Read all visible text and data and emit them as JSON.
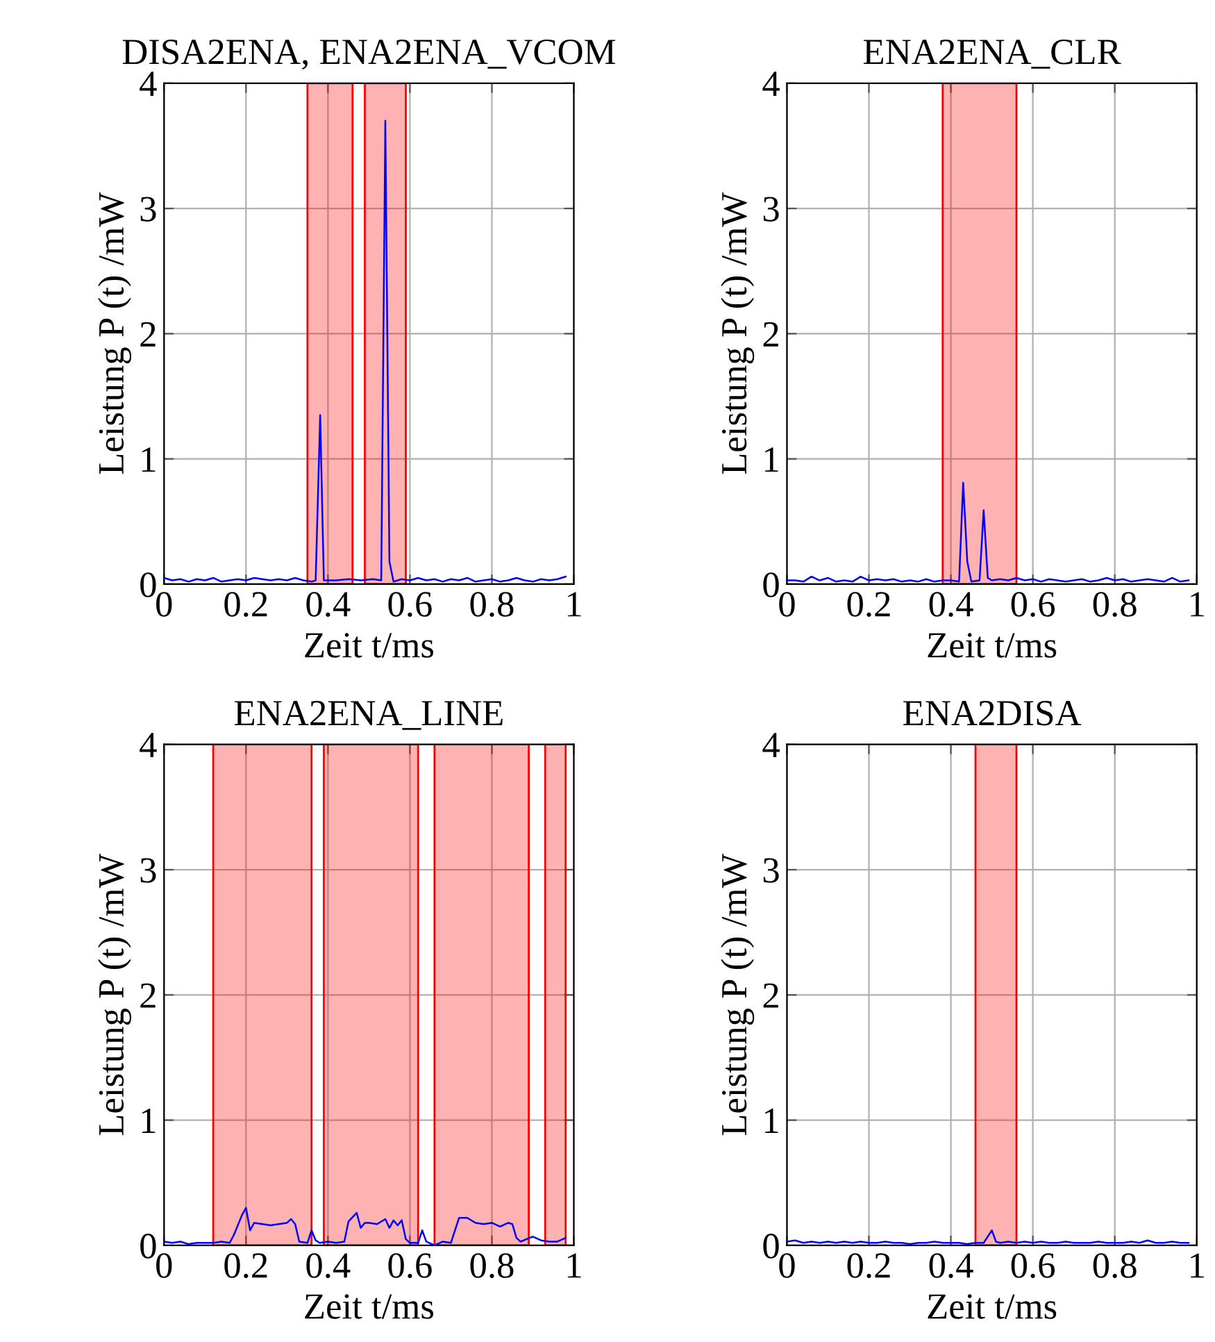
{
  "chart_data": [
    {
      "type": "line",
      "title": "DISA2ENA, ENA2ENA_VCOM",
      "xlabel": "Zeit t/ms",
      "ylabel": "Leistung P (t) /mW",
      "xlim": [
        0,
        1
      ],
      "ylim": [
        0,
        4
      ],
      "xticks": [
        0,
        0.2,
        0.4,
        0.6,
        0.8,
        1
      ],
      "yticks": [
        0,
        1,
        2,
        3,
        4
      ],
      "grid": true,
      "legend": false,
      "bands": [
        {
          "axis": "x",
          "from": 0.35,
          "to": 0.46,
          "color": "#ff0000"
        },
        {
          "axis": "x",
          "from": 0.49,
          "to": 0.59,
          "color": "#ff0000"
        }
      ],
      "series": [
        {
          "color": "#0000ff",
          "x": [
            0,
            0.02,
            0.04,
            0.06,
            0.08,
            0.1,
            0.12,
            0.14,
            0.16,
            0.18,
            0.2,
            0.22,
            0.24,
            0.26,
            0.28,
            0.3,
            0.32,
            0.34,
            0.36,
            0.37,
            0.381,
            0.39,
            0.42,
            0.45,
            0.48,
            0.51,
            0.53,
            0.54,
            0.55,
            0.56,
            0.58,
            0.6,
            0.62,
            0.64,
            0.66,
            0.68,
            0.7,
            0.72,
            0.74,
            0.76,
            0.78,
            0.8,
            0.82,
            0.84,
            0.86,
            0.88,
            0.9,
            0.92,
            0.94,
            0.96,
            0.98
          ],
          "values": [
            0.05,
            0.03,
            0.04,
            0.02,
            0.04,
            0.03,
            0.05,
            0.02,
            0.03,
            0.04,
            0.03,
            0.05,
            0.04,
            0.03,
            0.04,
            0.03,
            0.05,
            0.03,
            0.02,
            0.03,
            1.35,
            0.03,
            0.03,
            0.04,
            0.03,
            0.04,
            0.03,
            3.7,
            0.18,
            0.02,
            0.04,
            0.03,
            0.05,
            0.03,
            0.04,
            0.02,
            0.04,
            0.03,
            0.05,
            0.02,
            0.03,
            0.04,
            0.02,
            0.03,
            0.05,
            0.03,
            0.02,
            0.04,
            0.03,
            0.04,
            0.06
          ]
        }
      ]
    },
    {
      "type": "line",
      "title": "ENA2ENA_CLR",
      "xlabel": "Zeit t/ms",
      "ylabel": "Leistung P (t) /mW",
      "xlim": [
        0,
        1
      ],
      "ylim": [
        0,
        4
      ],
      "xticks": [
        0,
        0.2,
        0.4,
        0.6,
        0.8,
        1
      ],
      "yticks": [
        0,
        1,
        2,
        3,
        4
      ],
      "grid": true,
      "legend": false,
      "bands": [
        {
          "axis": "x",
          "from": 0.38,
          "to": 0.56,
          "color": "#ff0000"
        }
      ],
      "series": [
        {
          "color": "#0000ff",
          "x": [
            0,
            0.02,
            0.04,
            0.06,
            0.08,
            0.1,
            0.12,
            0.14,
            0.16,
            0.18,
            0.2,
            0.22,
            0.24,
            0.26,
            0.28,
            0.3,
            0.32,
            0.34,
            0.36,
            0.38,
            0.4,
            0.42,
            0.43,
            0.44,
            0.45,
            0.47,
            0.48,
            0.49,
            0.5,
            0.52,
            0.54,
            0.56,
            0.58,
            0.6,
            0.62,
            0.64,
            0.66,
            0.68,
            0.7,
            0.72,
            0.74,
            0.76,
            0.78,
            0.8,
            0.82,
            0.84,
            0.86,
            0.88,
            0.9,
            0.92,
            0.94,
            0.96,
            0.98
          ],
          "values": [
            0.03,
            0.03,
            0.02,
            0.06,
            0.03,
            0.05,
            0.02,
            0.03,
            0.02,
            0.06,
            0.03,
            0.04,
            0.03,
            0.04,
            0.02,
            0.03,
            0.02,
            0.04,
            0.02,
            0.03,
            0.03,
            0.02,
            0.81,
            0.18,
            0.02,
            0.03,
            0.59,
            0.05,
            0.03,
            0.04,
            0.03,
            0.05,
            0.03,
            0.04,
            0.02,
            0.04,
            0.03,
            0.02,
            0.03,
            0.04,
            0.02,
            0.03,
            0.05,
            0.03,
            0.04,
            0.02,
            0.03,
            0.04,
            0.03,
            0.02,
            0.05,
            0.02,
            0.03
          ]
        }
      ]
    },
    {
      "type": "line",
      "title": "ENA2ENA_LINE",
      "xlabel": "Zeit t/ms",
      "ylabel": "Leistung P (t) /mW",
      "xlim": [
        0,
        1
      ],
      "ylim": [
        0,
        4
      ],
      "xticks": [
        0,
        0.2,
        0.4,
        0.6,
        0.8,
        1
      ],
      "yticks": [
        0,
        1,
        2,
        3,
        4
      ],
      "grid": true,
      "legend": false,
      "bands": [
        {
          "axis": "x",
          "from": 0.12,
          "to": 0.36,
          "color": "#ff0000"
        },
        {
          "axis": "x",
          "from": 0.39,
          "to": 0.62,
          "color": "#ff0000"
        },
        {
          "axis": "x",
          "from": 0.66,
          "to": 0.89,
          "color": "#ff0000"
        },
        {
          "axis": "x",
          "from": 0.93,
          "to": 0.98,
          "color": "#ff0000"
        }
      ],
      "series": [
        {
          "color": "#0000ff",
          "x": [
            0,
            0.02,
            0.04,
            0.06,
            0.08,
            0.1,
            0.12,
            0.14,
            0.16,
            0.17,
            0.19,
            0.2,
            0.21,
            0.22,
            0.24,
            0.26,
            0.28,
            0.3,
            0.31,
            0.32,
            0.33,
            0.35,
            0.36,
            0.37,
            0.38,
            0.4,
            0.42,
            0.44,
            0.45,
            0.47,
            0.48,
            0.49,
            0.5,
            0.52,
            0.54,
            0.55,
            0.56,
            0.57,
            0.58,
            0.59,
            0.6,
            0.62,
            0.63,
            0.64,
            0.66,
            0.68,
            0.7,
            0.72,
            0.74,
            0.76,
            0.78,
            0.8,
            0.82,
            0.84,
            0.85,
            0.86,
            0.87,
            0.9,
            0.92,
            0.94,
            0.96,
            0.98
          ],
          "values": [
            0.03,
            0.02,
            0.03,
            0.01,
            0.02,
            0.02,
            0.02,
            0.03,
            0.02,
            0.08,
            0.24,
            0.3,
            0.12,
            0.18,
            0.17,
            0.16,
            0.17,
            0.18,
            0.21,
            0.17,
            0.03,
            0.02,
            0.12,
            0.04,
            0.02,
            0.03,
            0.02,
            0.03,
            0.19,
            0.26,
            0.14,
            0.18,
            0.18,
            0.17,
            0.21,
            0.14,
            0.2,
            0.16,
            0.2,
            0.05,
            0.02,
            0.02,
            0.12,
            0.03,
            0.0,
            0.03,
            0.02,
            0.22,
            0.22,
            0.18,
            0.17,
            0.18,
            0.15,
            0.18,
            0.17,
            0.06,
            0.03,
            0.07,
            0.04,
            0.03,
            0.03,
            0.06
          ]
        }
      ]
    },
    {
      "type": "line",
      "title": "ENA2DISA",
      "xlabel": "Zeit t/ms",
      "ylabel": "Leistung P (t) /mW",
      "xlim": [
        0,
        1
      ],
      "ylim": [
        0,
        4
      ],
      "xticks": [
        0,
        0.2,
        0.4,
        0.6,
        0.8,
        1
      ],
      "yticks": [
        0,
        1,
        2,
        3,
        4
      ],
      "grid": true,
      "legend": false,
      "bands": [
        {
          "axis": "x",
          "from": 0.46,
          "to": 0.56,
          "color": "#ff0000"
        }
      ],
      "series": [
        {
          "color": "#0000ff",
          "x": [
            0,
            0.02,
            0.04,
            0.06,
            0.08,
            0.1,
            0.12,
            0.14,
            0.16,
            0.18,
            0.2,
            0.22,
            0.24,
            0.26,
            0.28,
            0.3,
            0.32,
            0.34,
            0.36,
            0.38,
            0.4,
            0.42,
            0.44,
            0.46,
            0.48,
            0.5,
            0.51,
            0.52,
            0.54,
            0.56,
            0.58,
            0.6,
            0.62,
            0.64,
            0.66,
            0.68,
            0.7,
            0.72,
            0.74,
            0.76,
            0.78,
            0.8,
            0.82,
            0.84,
            0.86,
            0.88,
            0.9,
            0.92,
            0.94,
            0.96,
            0.98
          ],
          "values": [
            0.03,
            0.04,
            0.02,
            0.03,
            0.02,
            0.03,
            0.02,
            0.03,
            0.02,
            0.03,
            0.02,
            0.02,
            0.03,
            0.02,
            0.02,
            0.01,
            0.02,
            0.02,
            0.03,
            0.02,
            0.02,
            0.02,
            0.01,
            0.02,
            0.02,
            0.12,
            0.03,
            0.02,
            0.03,
            0.02,
            0.03,
            0.02,
            0.03,
            0.02,
            0.02,
            0.03,
            0.02,
            0.02,
            0.02,
            0.03,
            0.02,
            0.02,
            0.02,
            0.03,
            0.02,
            0.04,
            0.02,
            0.02,
            0.03,
            0.02,
            0.02
          ]
        }
      ]
    }
  ]
}
